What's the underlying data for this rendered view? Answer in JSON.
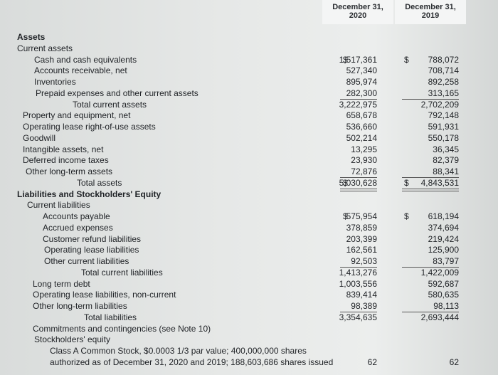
{
  "header": {
    "col2020": [
      "December 31,",
      "2020"
    ],
    "col2019": [
      "December 31,",
      "2019"
    ]
  },
  "rows": [
    {
      "label": "Assets"
    },
    {
      "label": "Current assets"
    },
    {
      "label": "Cash and cash equivalents",
      "cur2020": "$",
      "v2020": "1,517,361",
      "cur2019": "$",
      "v2019": "788,072"
    },
    {
      "label": "Accounts receivable, net",
      "v2020": "527,340",
      "v2019": "708,714"
    },
    {
      "label": "Inventories",
      "v2020": "895,974",
      "v2019": "892,258"
    },
    {
      "label": "Prepaid expenses and other current assets",
      "v2020": "282,300",
      "v2019": "313,165"
    },
    {
      "label": "Total current assets",
      "v2020": "3,222,975",
      "v2019": "2,702,209"
    },
    {
      "label": "Property and equipment, net",
      "v2020": "658,678",
      "v2019": "792,148"
    },
    {
      "label": "Operating lease right-of-use assets",
      "v2020": "536,660",
      "v2019": "591,931"
    },
    {
      "label": "Goodwill",
      "v2020": "502,214",
      "v2019": "550,178"
    },
    {
      "label": "Intangible assets, net",
      "v2020": "13,295",
      "v2019": "36,345"
    },
    {
      "label": "Deferred income taxes",
      "v2020": "23,930",
      "v2019": "82,379"
    },
    {
      "label": "Other long-term assets",
      "v2020": "72,876",
      "v2019": "88,341"
    },
    {
      "label": "Total assets",
      "cur2020": "$",
      "v2020": "5,030,628",
      "cur2019": "$",
      "v2019": "4,843,531"
    },
    {
      "label": "Liabilities and Stockholders' Equity"
    },
    {
      "label": "Current liabilities"
    },
    {
      "label": "Accounts payable",
      "cur2020": "$",
      "v2020": "575,954",
      "cur2019": "$",
      "v2019": "618,194"
    },
    {
      "label": "Accrued expenses",
      "v2020": "378,859",
      "v2019": "374,694"
    },
    {
      "label": "Customer refund liabilities",
      "v2020": "203,399",
      "v2019": "219,424"
    },
    {
      "label": "Operating lease liabilities",
      "v2020": "162,561",
      "v2019": "125,900"
    },
    {
      "label": "Other current liabilities",
      "v2020": "92,503",
      "v2019": "83,797"
    },
    {
      "label": "Total current liabilities",
      "v2020": "1,413,276",
      "v2019": "1,422,009"
    },
    {
      "label": "Long term debt",
      "v2020": "1,003,556",
      "v2019": "592,687"
    },
    {
      "label": "Operating lease liabilities, non-current",
      "v2020": "839,414",
      "v2019": "580,635"
    },
    {
      "label": "Other long-term liabilities",
      "v2020": "98,389",
      "v2019": "98,113"
    },
    {
      "label": "Total liabilities",
      "v2020": "3,354,635",
      "v2019": "2,693,444"
    },
    {
      "label": "Commitments and contingencies (see Note 10)"
    },
    {
      "label": "Stockholders' equity"
    },
    {
      "label": "Class A Common Stock, $0.0003 1/3 par value; 400,000,000 shares"
    },
    {
      "label": "authorized as of December 31, 2020 and 2019; 188,603,686 shares issued",
      "v2020": "62",
      "v2019": "62"
    }
  ]
}
